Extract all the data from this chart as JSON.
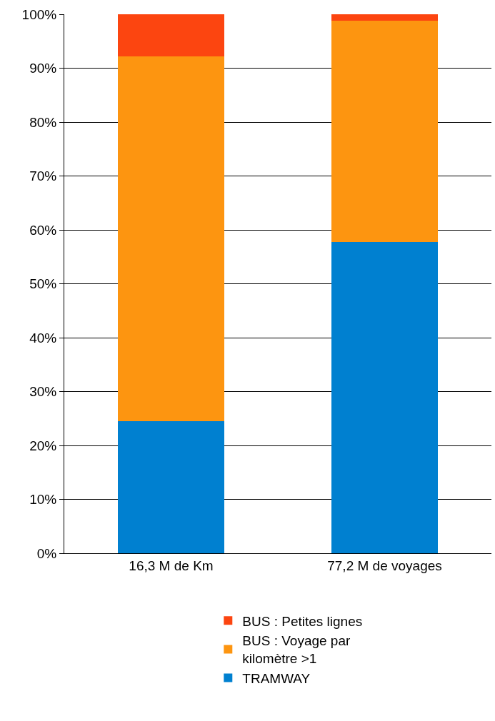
{
  "chart_data": {
    "type": "bar",
    "stacked": true,
    "categories": [
      "16,3 M de Km",
      "77,2 M de voyages"
    ],
    "series": [
      {
        "name": "TRAMWAY",
        "color": "#0080d0",
        "values": [
          24.5,
          57.7
        ]
      },
      {
        "name": "BUS : Voyage par kilomètre >1",
        "color": "#fd9510",
        "values": [
          67.7,
          41.1
        ]
      },
      {
        "name": "BUS : Petites lignes",
        "color": "#fc4510",
        "values": [
          7.8,
          1.2
        ]
      }
    ],
    "ylim": [
      0,
      100
    ],
    "yticks": [
      {
        "value": 0,
        "label": "0%"
      },
      {
        "value": 10,
        "label": "10%"
      },
      {
        "value": 20,
        "label": "20%"
      },
      {
        "value": 30,
        "label": "30%"
      },
      {
        "value": 40,
        "label": "40%"
      },
      {
        "value": 50,
        "label": "50%"
      },
      {
        "value": 60,
        "label": "60%"
      },
      {
        "value": 70,
        "label": "70%"
      },
      {
        "value": 80,
        "label": "80%"
      },
      {
        "value": 90,
        "label": "90%"
      },
      {
        "value": 100,
        "label": "100%"
      }
    ],
    "grid": "y",
    "legend": "bottom"
  }
}
